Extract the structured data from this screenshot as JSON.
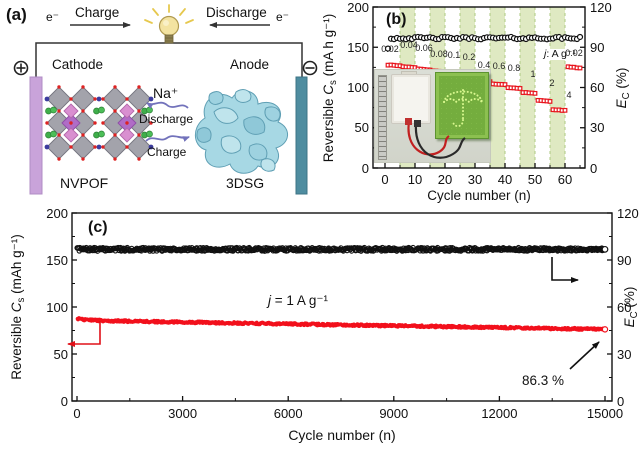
{
  "figure": {
    "panel_a": {
      "label": "(a)",
      "electron_left": "e⁻",
      "electron_right": "e⁻",
      "charge_top_label": "Charge",
      "discharge_top_label": "Discharge",
      "cathode_label": "Cathode",
      "anode_label": "Anode",
      "sodium_ion_label": "Na⁺",
      "ion_discharge_label": "Discharge",
      "ion_charge_label": "Charge",
      "cathode_material_label": "NVPOF",
      "anode_material_label": "3DSG",
      "colors": {
        "cathode_collector": "#c9a3da",
        "anode_collector": "#4f8da0",
        "graphene_blue": "#a7d8e4",
        "bulb_yellow": "#f3e3a1"
      }
    },
    "panel_b": {
      "label": "(b)",
      "ylabel_left": {
        "pre": "Reversible ",
        "var": "C",
        "sub": "s",
        "post": " (mA h g⁻¹)"
      },
      "ylabel_right": {
        "var": "E",
        "sub": "C",
        "post": " (%)"
      },
      "xlabel": "Cycle number (n)",
      "rate_unit": {
        "var": "j",
        "post": ": A g⁻¹"
      }
    },
    "panel_c": {
      "label": "(c)",
      "ylabel_left": {
        "pre": "Reversible ",
        "var": "C",
        "sub": "s",
        "post": " (mAh g⁻¹)"
      },
      "ylabel_right": {
        "var": "E",
        "sub": "C",
        "post": " (%)"
      },
      "xlabel": "Cycle number (n)",
      "current_density": {
        "var": "j",
        "post": " = 1 A g⁻¹"
      },
      "retention_label": "86.3 %"
    }
  },
  "chart_data": [
    {
      "id": "b",
      "type": "scatter",
      "xlabel": "Cycle number (n)",
      "ylabel_left": "Reversible Cs (mA h g-1)",
      "ylabel_right": "Ec (%)",
      "xlim": [
        -4,
        66.5
      ],
      "ylim_left": [
        0,
        200
      ],
      "ylim_right": [
        0,
        120
      ],
      "xticks": [
        0,
        10,
        20,
        30,
        40,
        50,
        60
      ],
      "yticks_left": [
        0,
        50,
        100,
        150,
        200
      ],
      "yticks_right": [
        0,
        30,
        60,
        90,
        120
      ],
      "grid": false,
      "band_color": "#dfe9c2",
      "highlight_bands_cycles": [
        [
          5,
          10
        ],
        [
          15,
          20
        ],
        [
          25,
          30
        ],
        [
          35,
          40
        ],
        [
          45,
          50
        ],
        [
          55,
          60
        ]
      ],
      "cycles_per_step": 5,
      "series": [
        {
          "name": "reversible-capacity",
          "axis": "left",
          "marker": "open-square",
          "color": "#e8141c",
          "rate_steps": [
            {
              "rate": "0.02",
              "cycle_start": 1,
              "capacity": 128
            },
            {
              "rate": "0.04",
              "cycle_start": 6,
              "capacity": 126
            },
            {
              "rate": "0.06",
              "cycle_start": 11,
              "capacity": 123
            },
            {
              "rate": "0.08",
              "cycle_start": 16,
              "capacity": 120.5
            },
            {
              "rate": "0.1",
              "cycle_start": 21,
              "capacity": 118
            },
            {
              "rate": "0.2",
              "cycle_start": 26,
              "capacity": 114
            },
            {
              "rate": "0.4",
              "cycle_start": 31,
              "capacity": 108.5
            },
            {
              "rate": "0.6",
              "cycle_start": 36,
              "capacity": 104.5
            },
            {
              "rate": "0.8",
              "cycle_start": 41,
              "capacity": 100
            },
            {
              "rate": "1",
              "cycle_start": 46,
              "capacity": 94
            },
            {
              "rate": "2",
              "cycle_start": 51,
              "capacity": 84
            },
            {
              "rate": "4",
              "cycle_start": 56,
              "capacity": 72.5
            },
            {
              "rate": "0.02",
              "cycle_start": 61,
              "capacity": 125.5
            }
          ]
        },
        {
          "name": "coulombic-efficiency",
          "axis": "right",
          "marker": "open-circle",
          "color": "#111111",
          "first_cycle_value": 89,
          "steady_value": 96.8,
          "cycles": 65
        }
      ]
    },
    {
      "id": "c",
      "type": "scatter",
      "xlabel": "Cycle number (n)",
      "ylabel_left": "Reversible Cs (mAh g-1)",
      "ylabel_right": "Ec (%)",
      "xlim": [
        -350,
        15350
      ],
      "ylim_left": [
        0,
        200
      ],
      "ylim_right": [
        0,
        120
      ],
      "xticks": [
        0,
        3000,
        6000,
        9000,
        12000,
        15000
      ],
      "yticks_left": [
        0,
        50,
        100,
        150,
        200
      ],
      "yticks_right": [
        0,
        30,
        60,
        90,
        120
      ],
      "grid": false,
      "series": [
        {
          "name": "reversible-capacity",
          "axis": "left",
          "marker": "filled-circle",
          "color": "#f2101c",
          "capacity_initial": 88.2,
          "capacity_plateau": 85.3,
          "capacity_final": 76.2,
          "cycles": 15000,
          "retention_percent": 86.3
        },
        {
          "name": "coulombic-efficiency",
          "axis": "right",
          "marker": "open-circle",
          "color": "#111111",
          "steady_value": 96.8,
          "cycles": 15000
        }
      ]
    }
  ]
}
